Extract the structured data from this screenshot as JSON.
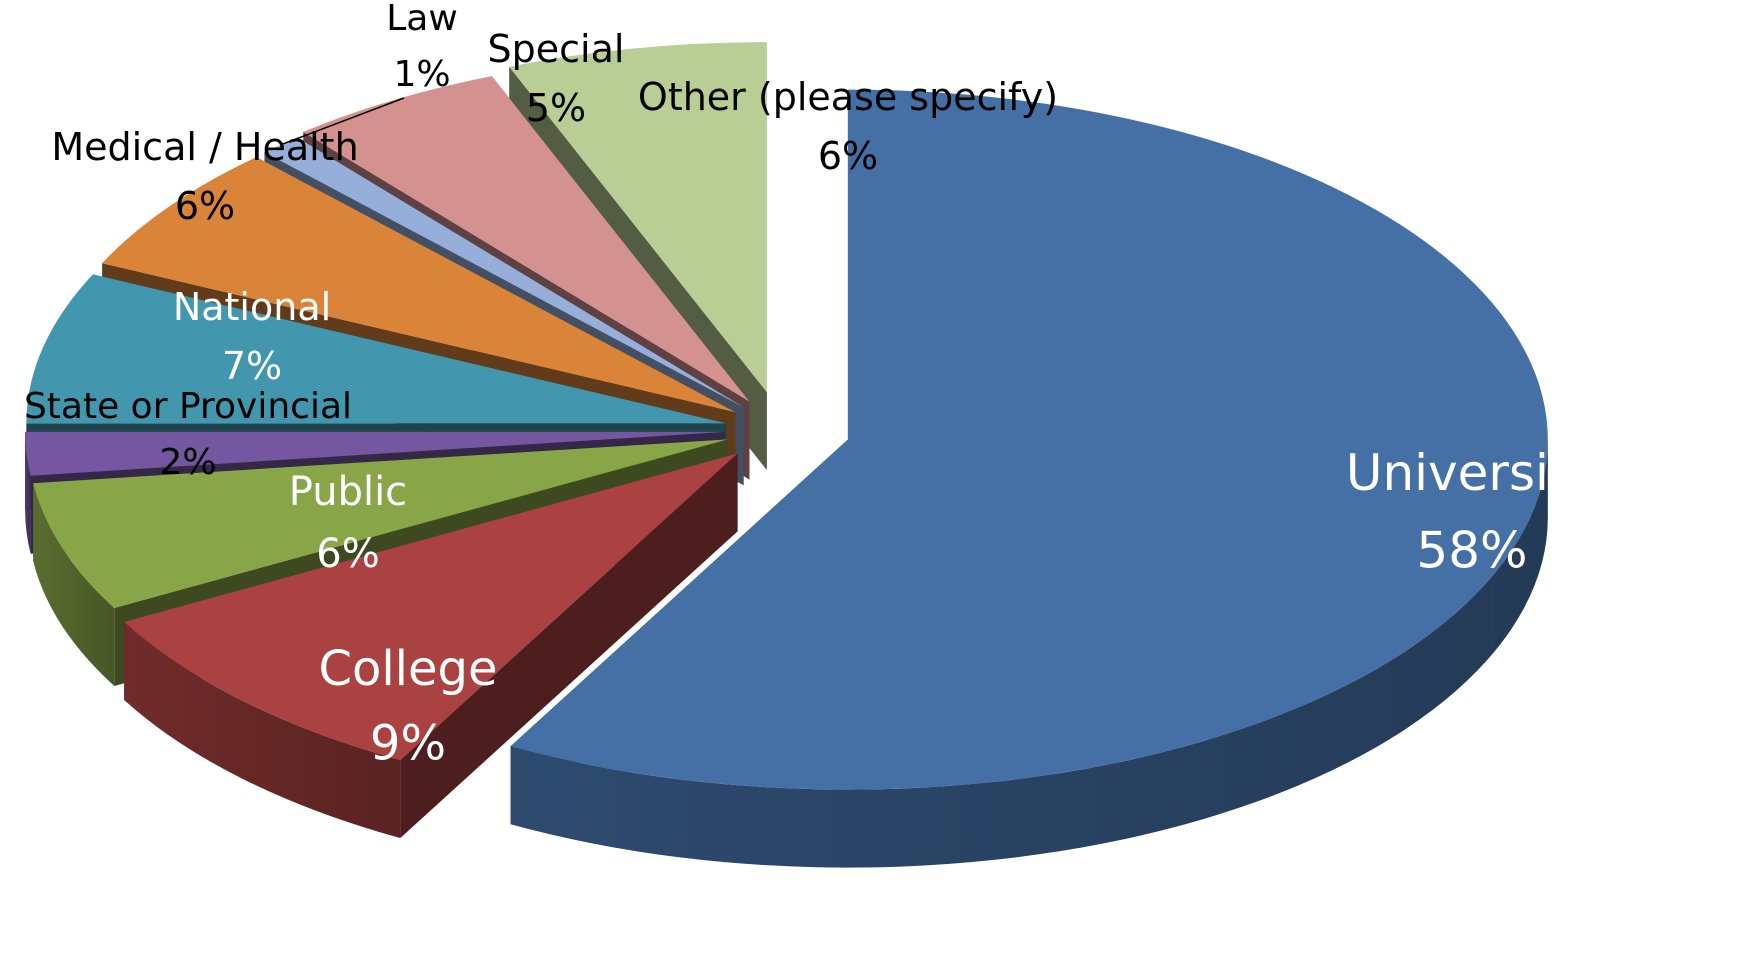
{
  "chart_data": {
    "type": "pie",
    "style": "3d-exploded",
    "slices": [
      {
        "label": "University",
        "value": 58,
        "value_label": "58%",
        "color": "#4470A6"
      },
      {
        "label": "College",
        "value": 9,
        "value_label": "9%",
        "color": "#A94240"
      },
      {
        "label": "Public",
        "value": 6,
        "value_label": "6%",
        "color": "#88A548"
      },
      {
        "label": "State or Provincial",
        "value": 2,
        "value_label": "2%",
        "color": "#7457A0"
      },
      {
        "label": "National",
        "value": 7,
        "value_label": "7%",
        "color": "#4296AE"
      },
      {
        "label": "Medical / Health",
        "value": 6,
        "value_label": "6%",
        "color": "#DA843A"
      },
      {
        "label": "Law",
        "value": 1,
        "value_label": "1%",
        "color": "#95AFDA"
      },
      {
        "label": "Special",
        "value": 5,
        "value_label": "5%",
        "color": "#D39190"
      },
      {
        "label": "Other (please specify)",
        "value": 6,
        "value_label": "6%",
        "color": "#B8CE94"
      }
    ]
  }
}
